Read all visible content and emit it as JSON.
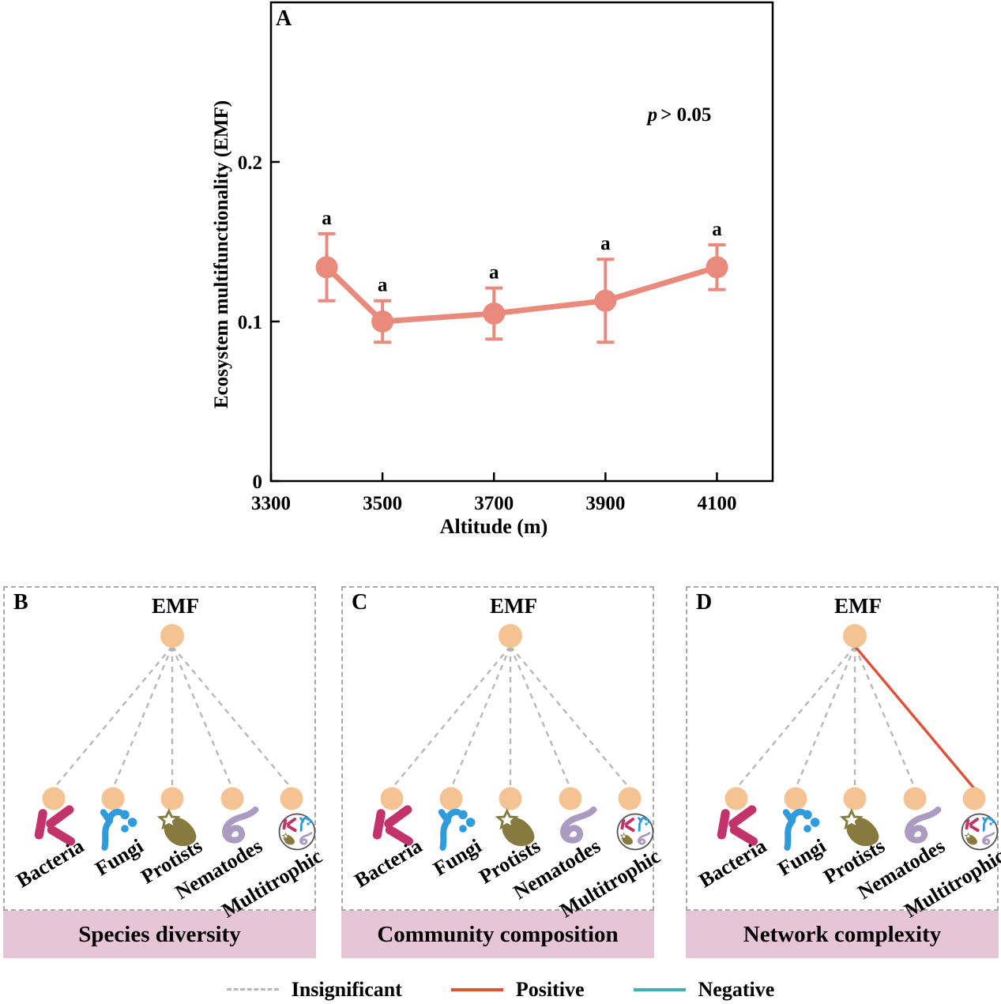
{
  "panel_a": {
    "letter": "A",
    "annotation_p": "p",
    "annotation_rest": "> 0.05"
  },
  "chart_data": {
    "type": "line",
    "title": "",
    "x": [
      3400,
      3500,
      3700,
      3900,
      4100
    ],
    "values": [
      0.134,
      0.1,
      0.105,
      0.113,
      0.134
    ],
    "errors": [
      0.021,
      0.013,
      0.016,
      0.026,
      0.014
    ],
    "sig_letters": [
      "a",
      "a",
      "a",
      "a",
      "a"
    ],
    "xlabel": "Altitude (m)",
    "ylabel": "Ecosystem multifunctionality (EMF)",
    "annotation": "p > 0.05",
    "xlim": [
      3300,
      4200
    ],
    "ylim": [
      0,
      0.3
    ],
    "xticks": [
      3300,
      3500,
      3700,
      3900,
      4100
    ],
    "xtick_labels": [
      "3300",
      "3500",
      "3700",
      "3900",
      "4100"
    ],
    "yticks": [
      0,
      0.1,
      0.2
    ],
    "ytick_labels": [
      "0",
      "0.1",
      "0.2"
    ],
    "grid": false,
    "legend_position": "none",
    "series": [
      {
        "name": "EMF",
        "color": "#e98a7d"
      }
    ]
  },
  "taxa": [
    {
      "label": "Bacteria",
      "icon": "bacteria-icon",
      "color": "#c1336a"
    },
    {
      "label": "Fungi",
      "icon": "fungi-icon",
      "color": "#2e9bdc"
    },
    {
      "label": "Protists",
      "icon": "protists-icon",
      "color": "#867a3e"
    },
    {
      "label": "Nematodes",
      "icon": "nematodes-icon",
      "color": "#ab9bc0"
    },
    {
      "label": "Multitrophic",
      "icon": "multitrophic-icon",
      "color": "#444444"
    }
  ],
  "panels": [
    {
      "letter": "B",
      "hub_label": "EMF",
      "band_label": "Species diversity",
      "links": [
        "insignificant",
        "insignificant",
        "insignificant",
        "insignificant",
        "insignificant"
      ]
    },
    {
      "letter": "C",
      "hub_label": "EMF",
      "band_label": "Community composition",
      "links": [
        "insignificant",
        "insignificant",
        "insignificant",
        "insignificant",
        "insignificant"
      ]
    },
    {
      "letter": "D",
      "hub_label": "EMF",
      "band_label": "Network complexity",
      "links": [
        "insignificant",
        "insignificant",
        "insignificant",
        "insignificant",
        "positive"
      ]
    }
  ],
  "legend": {
    "items": [
      {
        "label": "Insignificant",
        "type": "insignificant"
      },
      {
        "label": "Positive",
        "type": "positive"
      },
      {
        "label": "Negative",
        "type": "negative"
      }
    ]
  },
  "colors": {
    "series": "#e98a7d",
    "insignificant": "#b8b8b8",
    "positive": "#e2503a",
    "negative": "#46acb4",
    "node_fill": "#f5c392",
    "band_fill": "#e6c5d7"
  }
}
